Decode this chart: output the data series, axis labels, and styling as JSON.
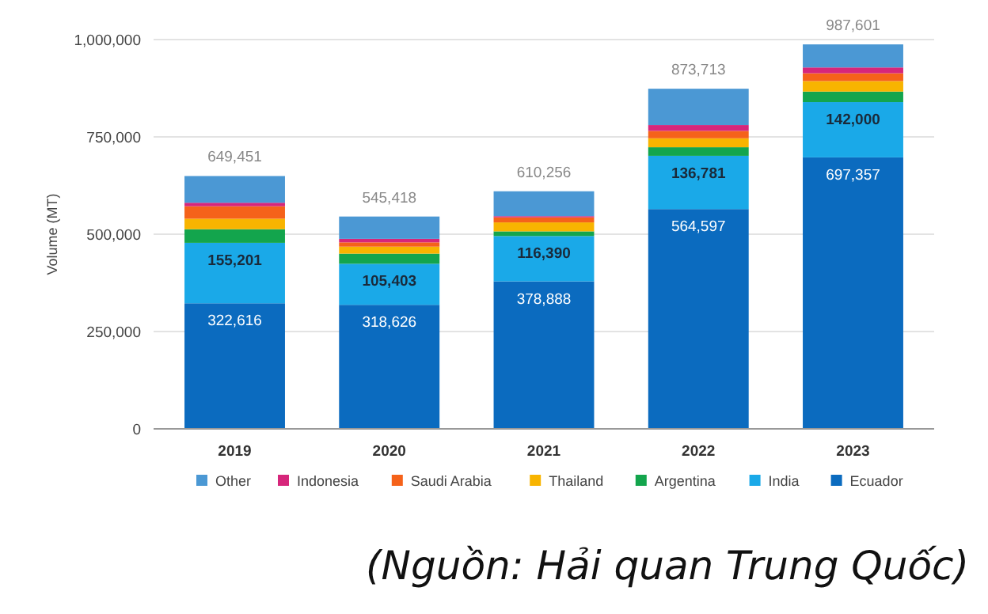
{
  "chart_data": {
    "type": "bar",
    "stacked": true,
    "ylabel": "Volume (MT)",
    "categories": [
      "2019",
      "2020",
      "2021",
      "2022",
      "2023"
    ],
    "ylim": [
      0,
      1000000
    ],
    "yticks": [
      {
        "value": 0,
        "label": "0"
      },
      {
        "value": 250000,
        "label": "250,000"
      },
      {
        "value": 500000,
        "label": "500,000"
      },
      {
        "value": 750000,
        "label": "750,000"
      },
      {
        "value": 1000000,
        "label": "1,000,000"
      }
    ],
    "grid": "y",
    "legend": "bottom",
    "series": [
      {
        "name": "Ecuador",
        "color": "#0b6bbf",
        "values": [
          322616,
          318626,
          378888,
          564597,
          697357
        ],
        "value_labels": [
          "322,616",
          "318,626",
          "378,888",
          "564,597",
          "697,357"
        ]
      },
      {
        "name": "India",
        "color": "#1aa9e8",
        "values": [
          155201,
          105403,
          116390,
          136781,
          142000
        ],
        "value_labels": [
          "155,201",
          "105,403",
          "116,390",
          "136,781",
          "142,000"
        ]
      },
      {
        "name": "Argentina",
        "color": "#13a54d",
        "values": [
          35000,
          26000,
          12000,
          22000,
          27000
        ]
      },
      {
        "name": "Thailand",
        "color": "#f8b400",
        "values": [
          27000,
          18000,
          23000,
          23000,
          27000
        ]
      },
      {
        "name": "Saudi Arabia",
        "color": "#f5621a",
        "values": [
          32000,
          11000,
          13000,
          19000,
          20000
        ]
      },
      {
        "name": "Indonesia",
        "color": "#d6267b",
        "values": [
          9000,
          9000,
          3000,
          15000,
          15000
        ]
      },
      {
        "name": "Other",
        "color": "#4b98d4",
        "values": [
          68634,
          57389,
          63978,
          93335,
          59244
        ]
      }
    ],
    "totals": [
      "649,451",
      "545,418",
      "610,256",
      "873,713",
      "987,601"
    ],
    "annotations": [
      "(Nguồn: Hải quan Trung Quốc)"
    ]
  }
}
